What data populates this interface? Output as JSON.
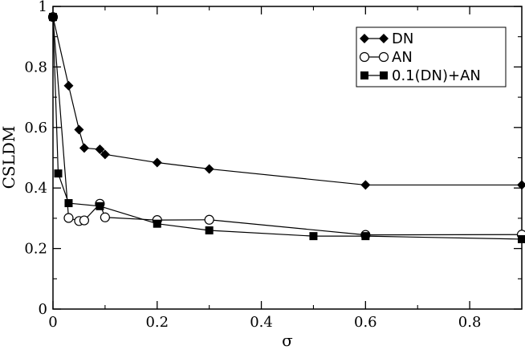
{
  "chart_data": {
    "type": "line",
    "title": "",
    "xlabel": "σ",
    "ylabel": "CSLDM",
    "xlim": [
      0,
      0.9
    ],
    "ylim": [
      0,
      1
    ],
    "xticks": [
      0,
      0.2,
      0.4,
      0.6,
      0.8
    ],
    "xtick_labels": [
      "0",
      "0.2",
      "0.4",
      "0.6",
      "0.8"
    ],
    "yticks": [
      0,
      0.2,
      0.4,
      0.6,
      0.8,
      1
    ],
    "ytick_labels": [
      "0",
      "0.2",
      "0.4",
      "0.6",
      "0.8",
      "1"
    ],
    "grid": false,
    "legend_position": "top-right",
    "series": [
      {
        "name": "DN",
        "marker": "diamond",
        "color": "#000000",
        "x": [
          0,
          0.03,
          0.05,
          0.06,
          0.09,
          0.1,
          0.2,
          0.3,
          0.6,
          0.9
        ],
        "y": [
          0.965,
          0.738,
          0.593,
          0.532,
          0.528,
          0.511,
          0.484,
          0.463,
          0.41,
          0.41
        ]
      },
      {
        "name": "AN",
        "marker": "circle-open",
        "color": "#000000",
        "x": [
          0,
          0.03,
          0.05,
          0.06,
          0.09,
          0.1,
          0.2,
          0.3,
          0.6,
          0.9
        ],
        "y": [
          0.965,
          0.301,
          0.291,
          0.293,
          0.348,
          0.303,
          0.294,
          0.295,
          0.245,
          0.246
        ]
      },
      {
        "name": "0.1(DN)+AN",
        "marker": "square",
        "color": "#000000",
        "x": [
          0,
          0.01,
          0.03,
          0.09,
          0.2,
          0.3,
          0.5,
          0.6,
          0.9
        ],
        "y": [
          0.965,
          0.448,
          0.35,
          0.34,
          0.282,
          0.26,
          0.241,
          0.241,
          0.231
        ]
      }
    ]
  }
}
